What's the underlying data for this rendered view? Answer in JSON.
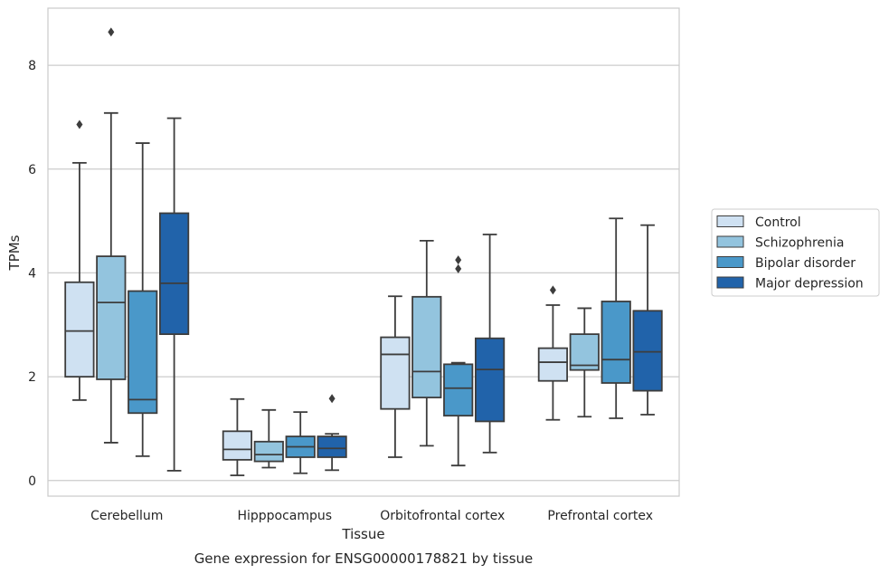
{
  "chart_data": {
    "type": "box",
    "xlabel": "Tissue",
    "ylabel": "TPMs",
    "caption": "Gene expression for ENSG00000178821 by tissue",
    "ylim": [
      -0.3,
      9.1
    ],
    "yticks": [
      0,
      2,
      4,
      6,
      8
    ],
    "grid": true,
    "legend_position": "right",
    "categories": [
      "Cerebellum",
      "Hipppocampus",
      "Orbitofrontal cortex",
      "Prefrontal cortex"
    ],
    "series": [
      {
        "name": "Control",
        "color": "#cfe1f2",
        "boxes": [
          {
            "whislo": 1.55,
            "q1": 2.0,
            "med": 2.88,
            "q3": 3.82,
            "whishi": 6.12,
            "fliers": [
              6.86
            ]
          },
          {
            "whislo": 0.1,
            "q1": 0.4,
            "med": 0.6,
            "q3": 0.95,
            "whishi": 1.57,
            "fliers": []
          },
          {
            "whislo": 0.45,
            "q1": 1.38,
            "med": 2.43,
            "q3": 2.76,
            "whishi": 3.55,
            "fliers": []
          },
          {
            "whislo": 1.17,
            "q1": 1.92,
            "med": 2.28,
            "q3": 2.55,
            "whishi": 3.38,
            "fliers": [
              3.67
            ]
          }
        ]
      },
      {
        "name": "Schizophrenia",
        "color": "#93c4de",
        "boxes": [
          {
            "whislo": 0.73,
            "q1": 1.95,
            "med": 3.43,
            "q3": 4.32,
            "whishi": 7.08,
            "fliers": [
              8.64
            ]
          },
          {
            "whislo": 0.25,
            "q1": 0.37,
            "med": 0.5,
            "q3": 0.75,
            "whishi": 1.36,
            "fliers": []
          },
          {
            "whislo": 0.67,
            "q1": 1.6,
            "med": 2.1,
            "q3": 3.54,
            "whishi": 4.62,
            "fliers": []
          },
          {
            "whislo": 1.23,
            "q1": 2.13,
            "med": 2.22,
            "q3": 2.82,
            "whishi": 3.32,
            "fliers": []
          }
        ]
      },
      {
        "name": "Bipolar disorder",
        "color": "#4a98c9",
        "boxes": [
          {
            "whislo": 0.47,
            "q1": 1.3,
            "med": 1.56,
            "q3": 3.65,
            "whishi": 6.5,
            "fliers": []
          },
          {
            "whislo": 0.14,
            "q1": 0.45,
            "med": 0.65,
            "q3": 0.85,
            "whishi": 1.32,
            "fliers": []
          },
          {
            "whislo": 0.29,
            "q1": 1.25,
            "med": 1.78,
            "q3": 2.24,
            "whishi": 2.27,
            "fliers": [
              4.08,
              4.25
            ]
          },
          {
            "whislo": 1.2,
            "q1": 1.88,
            "med": 2.33,
            "q3": 3.45,
            "whishi": 5.05,
            "fliers": []
          }
        ]
      },
      {
        "name": "Major depression",
        "color": "#2163aa",
        "boxes": [
          {
            "whislo": 0.19,
            "q1": 2.82,
            "med": 3.8,
            "q3": 5.15,
            "whishi": 6.98,
            "fliers": []
          },
          {
            "whislo": 0.2,
            "q1": 0.45,
            "med": 0.62,
            "q3": 0.85,
            "whishi": 0.9,
            "fliers": [
              1.58
            ]
          },
          {
            "whislo": 0.54,
            "q1": 1.14,
            "med": 2.14,
            "q3": 2.74,
            "whishi": 4.74,
            "fliers": []
          },
          {
            "whislo": 1.27,
            "q1": 1.73,
            "med": 2.48,
            "q3": 3.27,
            "whishi": 4.92,
            "fliers": []
          }
        ]
      }
    ]
  }
}
